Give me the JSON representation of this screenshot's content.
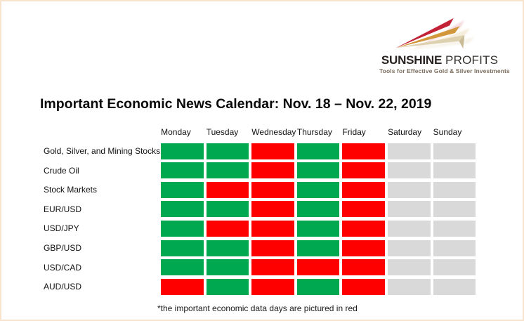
{
  "page": {
    "border_color": "#f8e4ce",
    "background": "#ffffff"
  },
  "logo": {
    "brand_bold": "SUNSHINE",
    "brand_light": "PROFITS",
    "tagline": "Tools for Effective Gold & Silver Investments",
    "arrow_colors": {
      "red": "#c32136",
      "gold": "#d2973b",
      "beige": "#ddd1b0"
    }
  },
  "title": "Important Economic News Calendar: Nov. 18 – Nov. 22, 2019",
  "footnote": "*the important economic data days are pictured in red",
  "chart_data": {
    "type": "heatmap",
    "title": "Important Economic News Calendar: Nov. 18 – Nov. 22, 2019",
    "columns": [
      "Monday",
      "Tuesday",
      "Wednesday",
      "Thursday",
      "Friday",
      "Saturday",
      "Sunday"
    ],
    "rows": [
      "Gold, Silver, and Mining Stocks",
      "Crude Oil",
      "Stock Markets",
      "EUR/USD",
      "USD/JPY",
      "GBP/USD",
      "USD/CAD",
      "AUD/USD"
    ],
    "values": [
      [
        "green",
        "green",
        "red",
        "green",
        "red",
        "gray",
        "gray"
      ],
      [
        "green",
        "green",
        "red",
        "green",
        "red",
        "gray",
        "gray"
      ],
      [
        "green",
        "red",
        "red",
        "green",
        "red",
        "gray",
        "gray"
      ],
      [
        "green",
        "green",
        "red",
        "green",
        "red",
        "gray",
        "gray"
      ],
      [
        "green",
        "red",
        "red",
        "green",
        "red",
        "gray",
        "gray"
      ],
      [
        "green",
        "green",
        "red",
        "green",
        "red",
        "gray",
        "gray"
      ],
      [
        "green",
        "green",
        "red",
        "red",
        "red",
        "gray",
        "gray"
      ],
      [
        "red",
        "green",
        "red",
        "green",
        "red",
        "gray",
        "gray"
      ]
    ],
    "cell_colors": {
      "green": "#00a94f",
      "red": "#fe0000",
      "gray": "#d9d9d9"
    },
    "annotation": "*the important economic data days are pictured in red",
    "legend_position": "none",
    "grid": "off"
  }
}
